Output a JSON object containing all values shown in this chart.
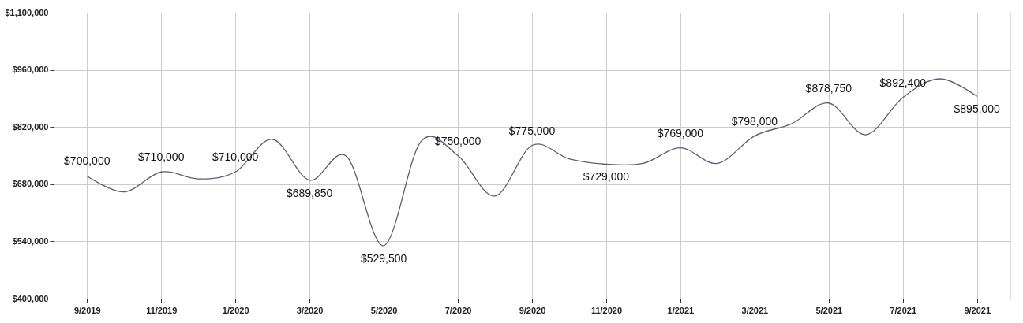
{
  "chart_data": {
    "type": "line",
    "categories": [
      "9/2019",
      null,
      "11/2019",
      null,
      "1/2020",
      null,
      "3/2020",
      null,
      "5/2020",
      null,
      "7/2020",
      null,
      "9/2020",
      null,
      "11/2020",
      null,
      "1/2021",
      null,
      "3/2021",
      null,
      "5/2021",
      null,
      "7/2021",
      null,
      "9/2021"
    ],
    "series": [
      {
        "color": "#5f5a7f",
        "values": [
          700000,
          661000,
          710000,
          693000,
          710000,
          790000,
          689850,
          748000,
          529500,
          784000,
          750000,
          651000,
          775000,
          742000,
          729000,
          731000,
          769000,
          731000,
          798000,
          828000,
          878750,
          801000,
          892400,
          938000,
          895000
        ],
        "value_labels": [
          "$700,000",
          null,
          "$710,000",
          null,
          "$710,000",
          null,
          "$689,850",
          null,
          "$529,500",
          null,
          "$750,000",
          null,
          "$775,000",
          null,
          "$729,000",
          null,
          "$769,000",
          null,
          "$798,000",
          null,
          "$878,750",
          null,
          "$892,400",
          null,
          "$895,000"
        ]
      }
    ],
    "ylim": [
      400000,
      1100000
    ],
    "yticks": [
      {
        "value": 400000,
        "label": "$400,000"
      },
      {
        "value": 540000,
        "label": "$540,000"
      },
      {
        "value": 680000,
        "label": "$680,000"
      },
      {
        "value": 820000,
        "label": "$820,000"
      },
      {
        "value": 960000,
        "label": "$960,000"
      },
      {
        "value": 1100000,
        "label": "$1,100,000"
      }
    ],
    "grid": true,
    "marker": "none",
    "line_style": "solid"
  }
}
